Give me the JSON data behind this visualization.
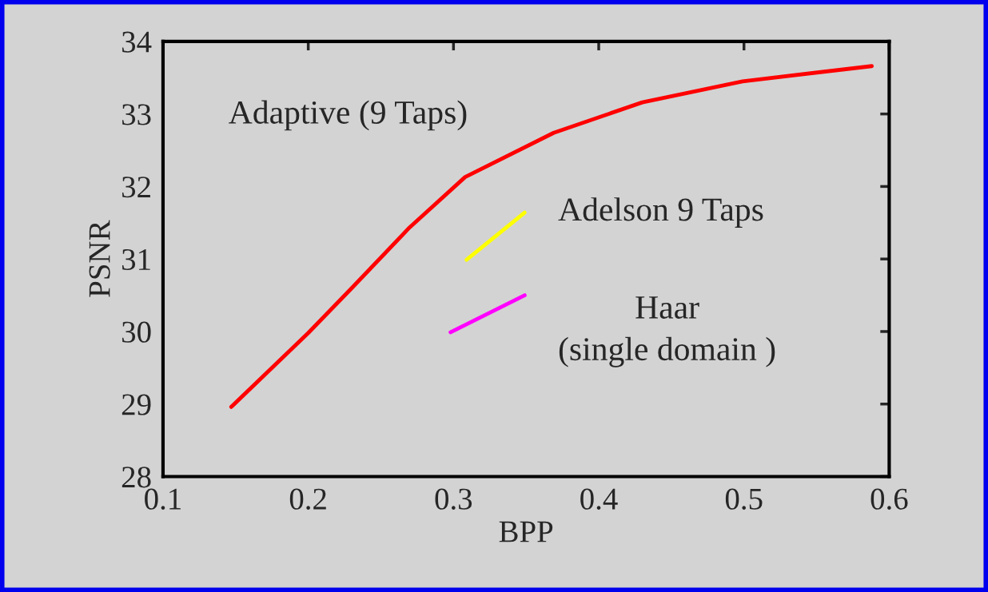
{
  "chart_data": {
    "type": "line",
    "xlabel": "BPP",
    "ylabel": "PSNR",
    "xlim": [
      0.1,
      0.6
    ],
    "xticks": [
      0.1,
      0.2,
      0.3,
      0.4,
      0.5,
      0.6
    ],
    "ylim": [
      28,
      34
    ],
    "yticks": [
      28,
      29,
      30,
      31,
      32,
      33,
      34
    ],
    "grid": false,
    "legend": false,
    "marker": "none",
    "line_style": "solid",
    "series": [
      {
        "name": "Adaptive (9 Taps)",
        "color": "#ff0000",
        "x": [
          0.147,
          0.2,
          0.23,
          0.269,
          0.308,
          0.369,
          0.43,
          0.499,
          0.588
        ],
        "values": [
          28.96,
          29.98,
          30.6,
          31.42,
          32.13,
          32.74,
          33.16,
          33.45,
          33.66
        ]
      },
      {
        "name": "Adelson 9 Taps",
        "color": "#ffff00",
        "x": [
          0.309,
          0.349
        ],
        "values": [
          30.99,
          31.64
        ]
      },
      {
        "name": "Haar\n(single domain )",
        "color": "#ff00ff",
        "x": [
          0.298,
          0.349
        ],
        "values": [
          29.99,
          30.5
        ]
      }
    ]
  }
}
